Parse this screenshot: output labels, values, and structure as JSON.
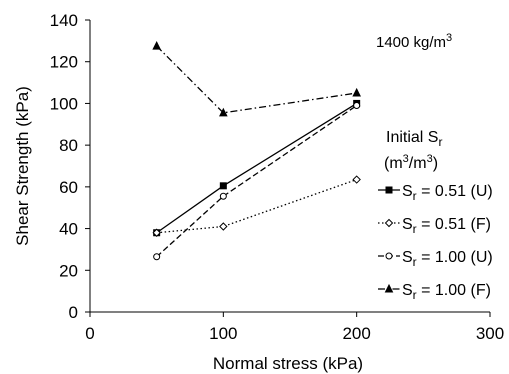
{
  "chart_data": {
    "type": "line",
    "xlabel": "Normal stress (kPa)",
    "ylabel": "Shear Strength (kPa)",
    "xlim": [
      0,
      300
    ],
    "ylim": [
      0,
      140
    ],
    "xticks": [
      0,
      100,
      200,
      300
    ],
    "yticks": [
      0,
      20,
      40,
      60,
      80,
      100,
      120,
      140
    ],
    "grid": false,
    "annotation": {
      "value": "1400 kg/m",
      "superscript": "3"
    },
    "legend": {
      "title_line1": {
        "base": "Initial S",
        "sub": "r"
      },
      "title_line2": {
        "open": "(m",
        "sup1": "3",
        "mid": "/m",
        "sup2": "3",
        "close": ")"
      },
      "placement": "right"
    },
    "series": [
      {
        "label_prefix": "S",
        "label_sub": "r",
        "label_suffix": " = 0.51 (U)",
        "marker": "square",
        "marker_fill": "#000000",
        "dash": "",
        "x": [
          50,
          100,
          200
        ],
        "y": [
          38,
          60.5,
          100
        ]
      },
      {
        "label_prefix": "S",
        "label_sub": "r",
        "label_suffix": " = 0.51 (F)",
        "marker": "diamond",
        "marker_fill": "#ffffff",
        "dash": "1.5,2.5",
        "x": [
          50,
          100,
          200
        ],
        "y": [
          38,
          41,
          63.5
        ]
      },
      {
        "label_prefix": "S",
        "label_sub": "r",
        "label_suffix": " = 1.00 (U)",
        "marker": "circle",
        "marker_fill": "#ffffff",
        "dash": "6,3",
        "x": [
          50,
          100,
          200
        ],
        "y": [
          26.5,
          55.5,
          99
        ]
      },
      {
        "label_prefix": "S",
        "label_sub": "r",
        "label_suffix": " = 1.00 (F)",
        "marker": "triangle",
        "marker_fill": "#000000",
        "dash": "7,3,1.5,3",
        "x": [
          50,
          100,
          200
        ],
        "y": [
          127.5,
          95.5,
          105
        ]
      }
    ]
  }
}
